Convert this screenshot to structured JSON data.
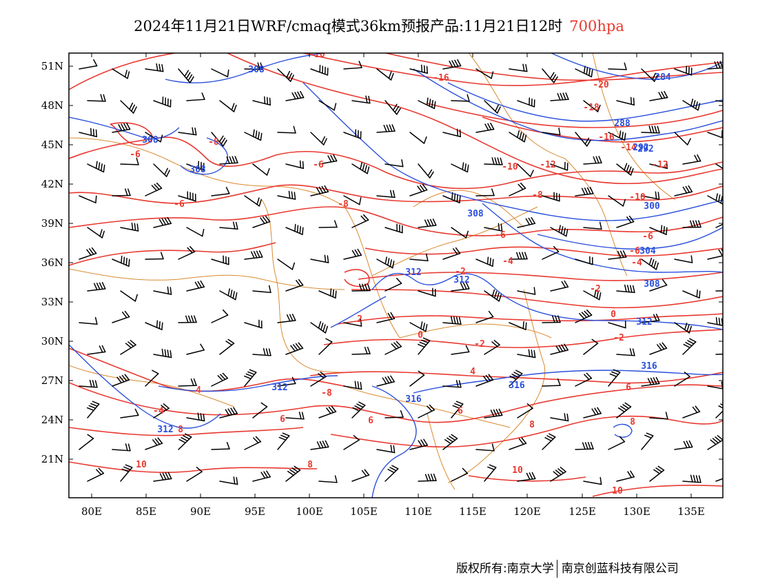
{
  "title": {
    "main": "2024年11月21日WRF/cmaq模式36km预报产品:11月21日12时",
    "level": "700hpa"
  },
  "footer": {
    "copyright": "版权所有:南京大学",
    "company": "南京创蓝科技有限公司"
  },
  "axes": {
    "lon_ticks": [
      "80E",
      "85E",
      "90E",
      "95E",
      "100E",
      "105E",
      "110E",
      "115E",
      "120E",
      "125E",
      "130E",
      "135E"
    ],
    "lat_ticks": [
      "51N",
      "48N",
      "45N",
      "42N",
      "39N",
      "36N",
      "33N",
      "30N",
      "27N",
      "24N",
      "21N"
    ]
  },
  "colors": {
    "temperature": "#e8382f",
    "geopotential": "#2a4fdc",
    "boundary": "#d9892e",
    "wind": "#000000"
  },
  "map_extent": {
    "lon": [
      78,
      138
    ],
    "lat": [
      18,
      52
    ]
  },
  "temperature_labels": [
    "-10",
    "-16",
    "-20",
    "-18",
    "-16",
    "-14",
    "-12",
    "-12",
    "-10",
    "-10",
    "-8",
    "-8",
    "-8",
    "-6",
    "-6",
    "-6",
    "-6",
    "-6",
    "-6",
    "-4",
    "-4",
    "-2",
    "-2",
    "-2",
    "0",
    "0",
    "-2",
    "2",
    "-4",
    "4",
    "4",
    "6",
    "6",
    "6",
    "6",
    "8",
    "8",
    "8",
    "8",
    "10",
    "10",
    "10",
    "-8"
  ],
  "height_labels": [
    "308",
    "284",
    "288",
    "292",
    "308",
    "308",
    "300",
    "304",
    "308",
    "312",
    "312",
    "312",
    "316",
    "312",
    "316",
    "316",
    "312",
    "308",
    "292"
  ]
}
